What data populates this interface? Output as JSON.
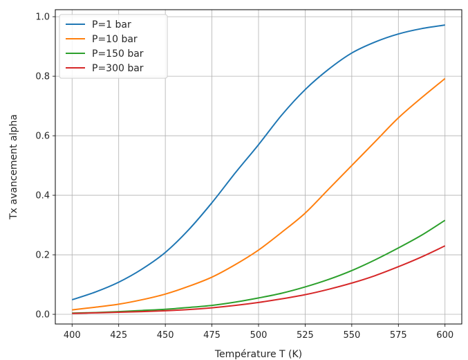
{
  "chart_data": {
    "type": "line",
    "xlabel": "Température T (K)",
    "ylabel": "Tx avancement alpha",
    "xlim": [
      391,
      609
    ],
    "ylim": [
      -0.0325,
      1.0235
    ],
    "xticks": [
      400,
      425,
      450,
      475,
      500,
      525,
      550,
      575,
      600
    ],
    "yticks": [
      0.0,
      0.2,
      0.4,
      0.6,
      0.8,
      1.0
    ],
    "xtick_labels": [
      "400",
      "425",
      "450",
      "475",
      "500",
      "525",
      "550",
      "575",
      "600"
    ],
    "ytick_labels": [
      "0.0",
      "0.2",
      "0.4",
      "0.6",
      "0.8",
      "1.0"
    ],
    "grid": true,
    "legend_position": "top-left",
    "x": [
      400,
      412.5,
      425,
      437.5,
      450,
      462.5,
      475,
      487.5,
      500,
      512.5,
      525,
      537.5,
      550,
      562.5,
      575,
      587.5,
      600
    ],
    "series": [
      {
        "name": "P=1 bar",
        "color": "#1f77b4",
        "values": [
          0.049,
          0.075,
          0.108,
          0.152,
          0.208,
          0.284,
          0.375,
          0.475,
          0.57,
          0.67,
          0.755,
          0.823,
          0.878,
          0.915,
          0.942,
          0.96,
          0.972
        ]
      },
      {
        "name": "P=10 bar",
        "color": "#ff7f0e",
        "values": [
          0.015,
          0.024,
          0.034,
          0.049,
          0.068,
          0.094,
          0.125,
          0.167,
          0.216,
          0.276,
          0.34,
          0.42,
          0.5,
          0.58,
          0.66,
          0.728,
          0.792
        ]
      },
      {
        "name": "P=150 bar",
        "color": "#2ca02c",
        "values": [
          0.004,
          0.006,
          0.009,
          0.013,
          0.017,
          0.023,
          0.03,
          0.041,
          0.055,
          0.071,
          0.092,
          0.117,
          0.147,
          0.183,
          0.223,
          0.266,
          0.316
        ]
      },
      {
        "name": "P=300 bar",
        "color": "#d62728",
        "values": [
          0.003,
          0.005,
          0.007,
          0.009,
          0.012,
          0.016,
          0.022,
          0.03,
          0.04,
          0.052,
          0.066,
          0.084,
          0.105,
          0.13,
          0.16,
          0.193,
          0.23
        ]
      }
    ]
  }
}
